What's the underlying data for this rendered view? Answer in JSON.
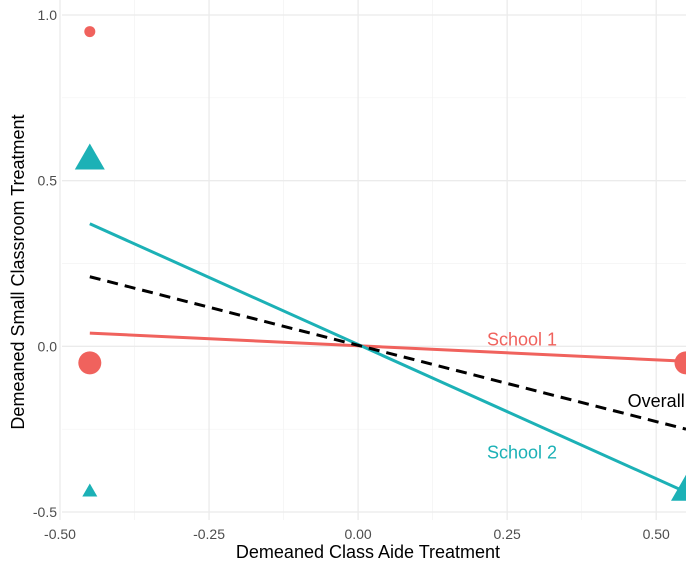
{
  "chart_data": {
    "type": "scatter",
    "title": "",
    "xlabel": "Demeaned Class Aide Treatment",
    "ylabel": "Demeaned Small Classroom Treatment",
    "xlim": [
      -0.5,
      0.55
    ],
    "ylim": [
      -0.5,
      1.0
    ],
    "x_ticks": [
      -0.5,
      -0.25,
      0.0,
      0.25,
      0.5
    ],
    "x_tick_labels": [
      "-0.50",
      "-0.25",
      "0.00",
      "0.25",
      "0.50"
    ],
    "y_ticks": [
      -0.5,
      0.0,
      0.5,
      1.0
    ],
    "y_tick_labels": [
      "-0.5",
      "0.0",
      "0.5",
      "1.0"
    ],
    "grid": true,
    "legend": "none",
    "colors": {
      "school1": "#F0625D",
      "school2": "#1CB1B6",
      "overall": "#000000"
    },
    "points": [
      {
        "group": "school1",
        "shape": "circle",
        "x": -0.45,
        "y": 0.95,
        "size": "small"
      },
      {
        "group": "school1",
        "shape": "circle",
        "x": -0.45,
        "y": -0.05,
        "size": "large"
      },
      {
        "group": "school1",
        "shape": "circle",
        "x": 0.55,
        "y": -0.05,
        "size": "large"
      },
      {
        "group": "school2",
        "shape": "triangle",
        "x": -0.45,
        "y": 0.56,
        "size": "large"
      },
      {
        "group": "school2",
        "shape": "triangle",
        "x": -0.45,
        "y": -0.44,
        "size": "small"
      },
      {
        "group": "school2",
        "shape": "triangle",
        "x": 0.55,
        "y": -0.44,
        "size": "large"
      }
    ],
    "lines": [
      {
        "name": "School 1",
        "color": "school1",
        "dashed": false,
        "x": [
          -0.45,
          0.55
        ],
        "y": [
          0.04,
          -0.045
        ],
        "label": "School 1",
        "label_at": {
          "x": 0.275,
          "y": 0.02
        }
      },
      {
        "name": "School 2",
        "color": "school2",
        "dashed": false,
        "x": [
          -0.45,
          0.55
        ],
        "y": [
          0.37,
          -0.44
        ],
        "label": "School 2",
        "label_at": {
          "x": 0.275,
          "y": -0.32
        }
      },
      {
        "name": "Overall",
        "color": "overall",
        "dashed": true,
        "x": [
          -0.45,
          0.55
        ],
        "y": [
          0.21,
          -0.25
        ],
        "label": "Overall",
        "label_at": {
          "x": 0.5,
          "y": -0.165
        }
      }
    ]
  }
}
